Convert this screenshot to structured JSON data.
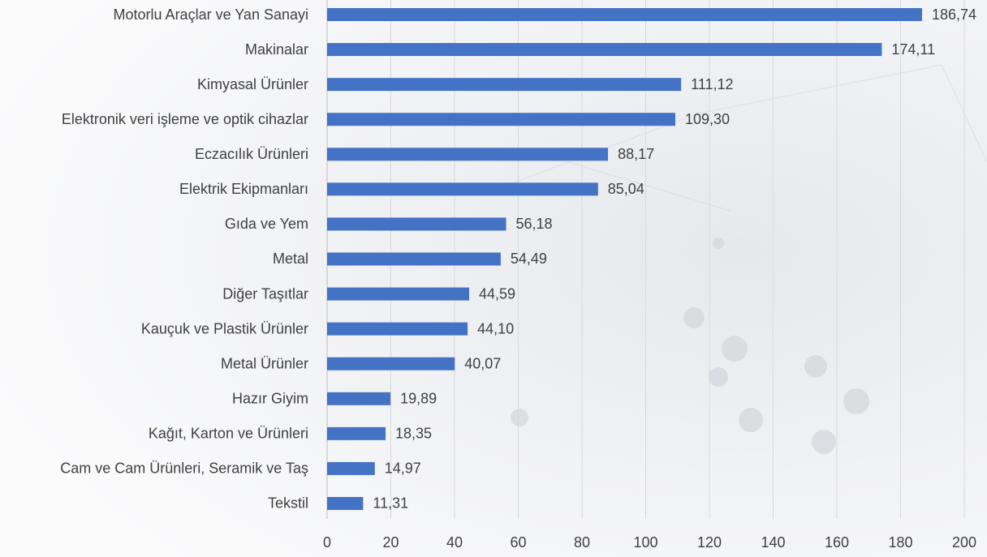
{
  "chart_data": {
    "type": "bar",
    "orientation": "horizontal",
    "categories": [
      "Motorlu Araçlar ve Yan Sanayi",
      "Makinalar",
      "Kimyasal Ürünler",
      "Elektronik veri işleme ve optik cihazlar",
      "Eczacılık Ürünleri",
      "Elektrik Ekipmanları",
      "Gıda ve Yem",
      "Metal",
      "Diğer Taşıtlar",
      "Kauçuk ve Plastik Ürünler",
      "Metal Ürünler",
      "Hazır Giyim",
      "Kağıt, Karton ve Ürünleri",
      "Cam ve Cam Ürünleri, Seramik ve Taş",
      "Tekstil"
    ],
    "values": [
      186.74,
      174.11,
      111.12,
      109.3,
      88.17,
      85.04,
      56.18,
      54.49,
      44.59,
      44.1,
      40.07,
      19.89,
      18.35,
      14.97,
      11.31
    ],
    "value_labels": [
      "186,74",
      "174,11",
      "111,12",
      "109,30",
      "88,17",
      "85,04",
      "56,18",
      "54,49",
      "44,59",
      "44,10",
      "40,07",
      "19,89",
      "18,35",
      "14,97",
      "11,31"
    ],
    "color": "#4472c4",
    "xlim": [
      0,
      200
    ],
    "xticks": [
      0,
      20,
      40,
      60,
      80,
      100,
      120,
      140,
      160,
      180,
      200
    ],
    "grid": true
  }
}
